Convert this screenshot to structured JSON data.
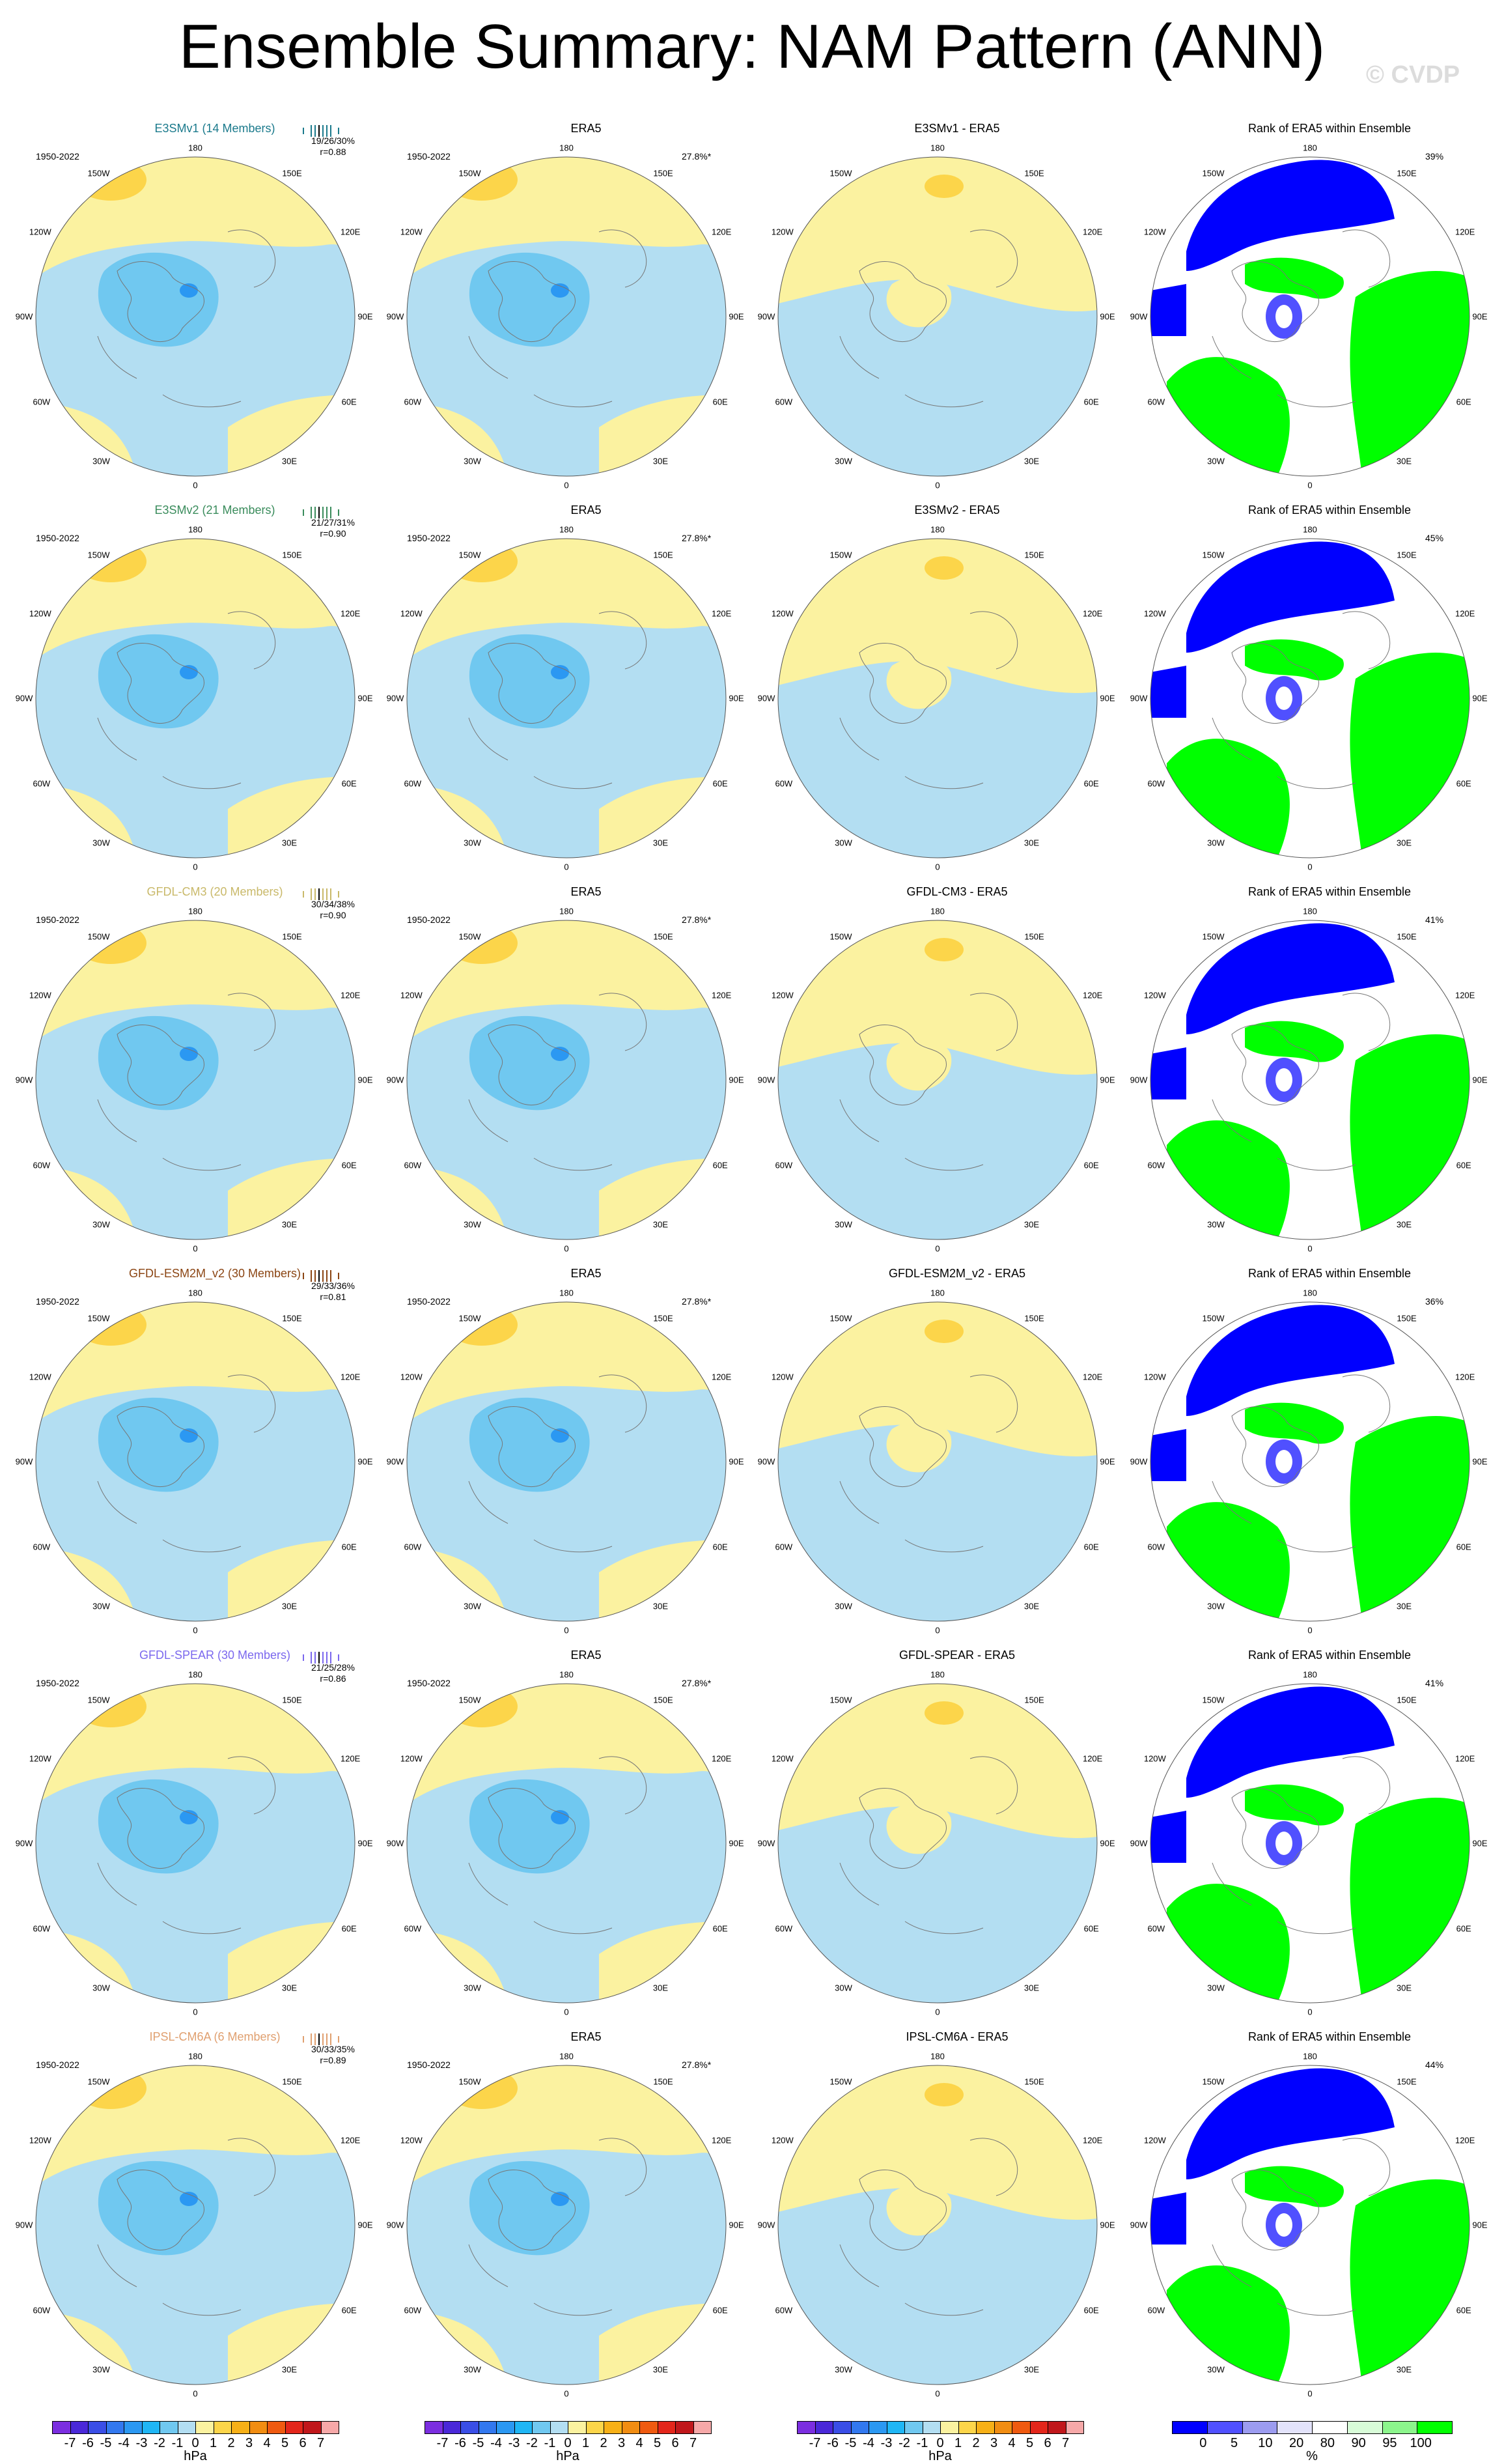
{
  "title": "Ensemble Summary: NAM Pattern (ANN)",
  "watermark": "© CVDP",
  "period": "1950-2022",
  "obs_name": "ERA5",
  "obs_pct": "27.8%*",
  "rank_title": "Rank of ERA5 within Ensemble",
  "lon_labels": {
    "n": "180",
    "s": "0",
    "e": "90E",
    "w": "90W",
    "ne1": "150E",
    "ne2": "120E",
    "se1": "60E",
    "se2": "30E",
    "nw1": "150W",
    "nw2": "120W",
    "sw1": "60W",
    "sw2": "30W"
  },
  "models": [
    {
      "name": "E3SMv1 (14 Members)",
      "color": "#1b7a8c",
      "spread": "19/26/30%",
      "r": "r=0.88",
      "diff": "E3SMv1 - ERA5",
      "rank_pct": "39%"
    },
    {
      "name": "E3SMv2 (21 Members)",
      "color": "#3a8c5c",
      "spread": "21/27/31%",
      "r": "r=0.90",
      "diff": "E3SMv2 - ERA5",
      "rank_pct": "45%"
    },
    {
      "name": "GFDL-CM3 (20 Members)",
      "color": "#c9b96a",
      "spread": "30/34/38%",
      "r": "r=0.90",
      "diff": "GFDL-CM3 - ERA5",
      "rank_pct": "41%"
    },
    {
      "name": "GFDL-ESM2M_v2 (30 Members)",
      "color": "#8b4513",
      "spread": "29/33/36%",
      "r": "r=0.81",
      "diff": "GFDL-ESM2M_v2 - ERA5",
      "rank_pct": "36%"
    },
    {
      "name": "GFDL-SPEAR (30 Members)",
      "color": "#7b68ee",
      "spread": "21/25/28%",
      "r": "r=0.86",
      "diff": "GFDL-SPEAR - ERA5",
      "rank_pct": "41%"
    },
    {
      "name": "IPSL-CM6A (6 Members)",
      "color": "#e0a070",
      "spread": "30/33/35%",
      "r": "r=0.89",
      "diff": "IPSL-CM6A - ERA5",
      "rank_pct": "44%"
    }
  ],
  "chart_data": {
    "type": "heatmap",
    "colorbar_hpa": {
      "ticks": [
        "-7",
        "-6",
        "-5",
        "-4",
        "-3",
        "-2",
        "-1",
        "0",
        "1",
        "2",
        "3",
        "4",
        "5",
        "6",
        "7"
      ],
      "colors": [
        "#7b2ee0",
        "#4a28d8",
        "#3a4ee6",
        "#3278ef",
        "#2b98f2",
        "#1fb6f5",
        "#70c8f0",
        "#b3def2",
        "#fbf2a0",
        "#fcd54a",
        "#f7b017",
        "#f18d12",
        "#ef5a10",
        "#e3261b",
        "#c0171b",
        "#f6a8a8"
      ],
      "unit": "hPa"
    },
    "colorbar_rank": {
      "ticks": [
        "0",
        "5",
        "10",
        "20",
        "80",
        "90",
        "95",
        "100"
      ],
      "colors": [
        "#0000ff",
        "#5050ff",
        "#9c9cf0",
        "#e3e3fb",
        "#ffffff",
        "#d8fcd8",
        "#8cf58c",
        "#00ff00"
      ],
      "unit": "%"
    }
  }
}
